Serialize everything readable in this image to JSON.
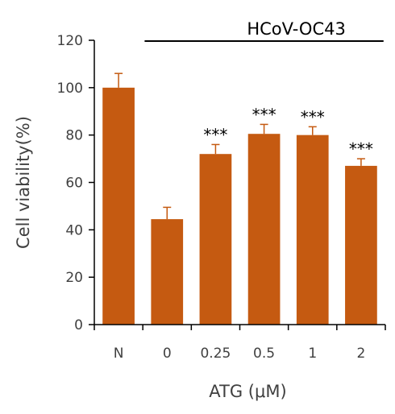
{
  "chart_data": {
    "type": "bar",
    "categories": [
      "N",
      "0",
      "0.25",
      "0.5",
      "1",
      "2"
    ],
    "values": [
      100,
      44.5,
      72,
      80.5,
      80,
      67
    ],
    "errors": [
      6,
      5,
      4,
      4,
      3.5,
      3
    ],
    "significance": [
      "",
      "",
      "***",
      "***",
      "***",
      "***"
    ],
    "xlabel": "ATG (μM)",
    "ylabel": "Cell viability(%)",
    "ylim": [
      0,
      120
    ],
    "yticks": [
      0,
      20,
      40,
      60,
      80,
      100,
      120
    ],
    "group_label": "HCoV-OC43",
    "group_categories": [
      "0",
      "0.25",
      "0.5",
      "1",
      "2"
    ],
    "bar_color": "#C55A11",
    "grid": false,
    "legend": "none"
  }
}
